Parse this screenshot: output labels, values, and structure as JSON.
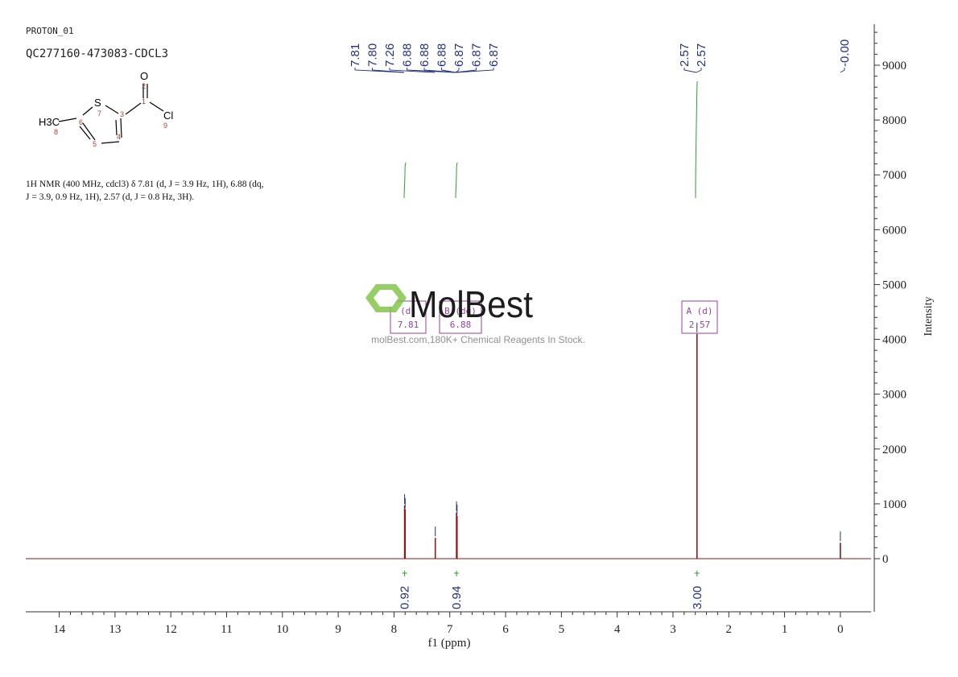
{
  "header": {
    "line1": "PROTON_01",
    "line2": "QC277160-473083-CDCL3"
  },
  "molecule": {
    "atom_O": "O",
    "atom_S": "S",
    "atom_Cl": "Cl",
    "atom_H3C": "H3C",
    "num_1": "1",
    "num_2": "2",
    "num_3": "3",
    "num_4": "4",
    "num_5": "5",
    "num_6": "6",
    "num_7": "7",
    "num_8": "8",
    "num_9": "9"
  },
  "nmr_summary": {
    "line1": "1H NMR (400 MHz, cdcl3) δ 7.81 (d, J = 3.9 Hz, 1H), 6.88 (dq,",
    "line2": "J = 3.9, 0.9 Hz, 1H), 2.57 (d, J = 0.8 Hz, 3H)."
  },
  "watermark": {
    "brand": "MolBest",
    "tagline": "molBest.com,180K+ Chemical Reagents In Stock."
  },
  "multiplet_boxes": [
    {
      "label": "(d)",
      "shift": "7.81"
    },
    {
      "label": "B (dq)",
      "shift": "6.88"
    },
    {
      "label": "A (d)",
      "shift": "2.57"
    }
  ],
  "chart_data": {
    "type": "line",
    "xlabel": "f1 (ppm)",
    "ylabel": "Intensity",
    "xlim": [
      14.6,
      -0.55
    ],
    "ylim": [
      -1000,
      9700
    ],
    "x_ticks": [
      "14",
      "13",
      "12",
      "11",
      "10",
      "9",
      "8",
      "7",
      "6",
      "5",
      "4",
      "3",
      "2",
      "1",
      "0"
    ],
    "x_tick_values": [
      14,
      13,
      12,
      11,
      10,
      9,
      8,
      7,
      6,
      5,
      4,
      3,
      2,
      1,
      0
    ],
    "y_ticks": [
      "0",
      "1000",
      "2000",
      "3000",
      "4000",
      "5000",
      "6000",
      "7000",
      "8000",
      "9000"
    ],
    "y_tick_values": [
      0,
      1000,
      2000,
      3000,
      4000,
      5000,
      6000,
      7000,
      8000,
      9000
    ],
    "peaks": [
      {
        "ppm": 7.81,
        "height": 970
      },
      {
        "ppm": 7.8,
        "height": 900
      },
      {
        "ppm": 7.26,
        "height": 380
      },
      {
        "ppm": 6.88,
        "height": 840
      },
      {
        "ppm": 6.87,
        "height": 780
      },
      {
        "ppm": 2.57,
        "height": 4100
      },
      {
        "ppm": 0.0,
        "height": 290
      }
    ],
    "peak_labels": {
      "group_aromatic": [
        "7.81",
        "7.80",
        "7.26",
        "6.88",
        "6.88",
        "6.88",
        "6.87",
        "6.87",
        "6.87"
      ],
      "group_methyl": [
        "2.57",
        "2.57"
      ],
      "group_tms": [
        "-0.00"
      ]
    },
    "integrals": [
      {
        "ppm": 7.81,
        "value": "0.92"
      },
      {
        "ppm": 6.88,
        "value": "0.94"
      },
      {
        "ppm": 2.57,
        "value": "3.00"
      }
    ],
    "colors": {
      "spectrum": "#8b1a1a",
      "peak_label": "#1f2f8c",
      "integral_curve": "#2e9e2e",
      "multiplet_box": "#9a3fa0"
    }
  }
}
